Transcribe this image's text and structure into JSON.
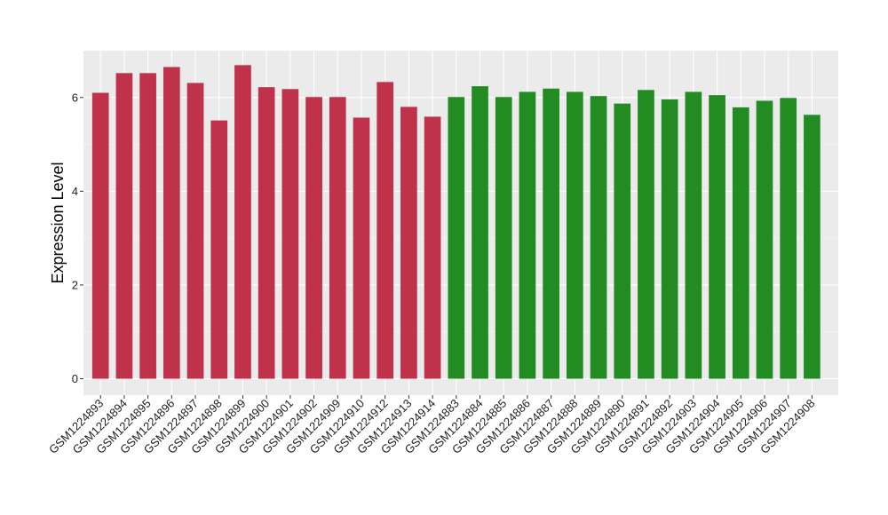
{
  "chart_data": {
    "type": "bar",
    "ylabel": "Expression Level",
    "xlabel": "",
    "ylim": [
      -0.35,
      7.0
    ],
    "yticks": [
      0,
      2,
      4,
      6
    ],
    "grid": true,
    "legend": "none",
    "panel_background": "#EBEBEB",
    "categories": [
      "GSM1224893",
      "GSM1224894",
      "GSM1224895",
      "GSM1224896",
      "GSM1224897",
      "GSM1224898",
      "GSM1224899",
      "GSM1224900",
      "GSM1224901",
      "GSM1224902",
      "GSM1224909",
      "GSM1224910",
      "GSM1224912",
      "GSM1224913",
      "GSM1224914",
      "GSM1224883",
      "GSM1224884",
      "GSM1224885",
      "GSM1224886",
      "GSM1224887",
      "GSM1224888",
      "GSM1224889",
      "GSM1224890",
      "GSM1224891",
      "GSM1224892",
      "GSM1224903",
      "GSM1224904",
      "GSM1224905",
      "GSM1224906",
      "GSM1224907",
      "GSM1224908"
    ],
    "values": [
      6.1,
      6.52,
      6.52,
      6.65,
      6.31,
      5.51,
      6.69,
      6.22,
      6.18,
      6.01,
      6.01,
      5.57,
      6.33,
      5.8,
      5.59,
      6.01,
      6.24,
      6.01,
      6.12,
      6.19,
      6.12,
      6.03,
      5.87,
      6.16,
      5.96,
      6.12,
      6.05,
      5.79,
      5.93,
      5.99,
      5.63
    ],
    "bar_colors": [
      "#C0314A",
      "#C0314A",
      "#C0314A",
      "#C0314A",
      "#C0314A",
      "#C0314A",
      "#C0314A",
      "#C0314A",
      "#C0314A",
      "#C0314A",
      "#C0314A",
      "#C0314A",
      "#C0314A",
      "#C0314A",
      "#C0314A",
      "#228B22",
      "#228B22",
      "#228B22",
      "#228B22",
      "#228B22",
      "#228B22",
      "#228B22",
      "#228B22",
      "#228B22",
      "#228B22",
      "#228B22",
      "#228B22",
      "#228B22",
      "#228B22",
      "#228B22",
      "#228B22"
    ]
  }
}
